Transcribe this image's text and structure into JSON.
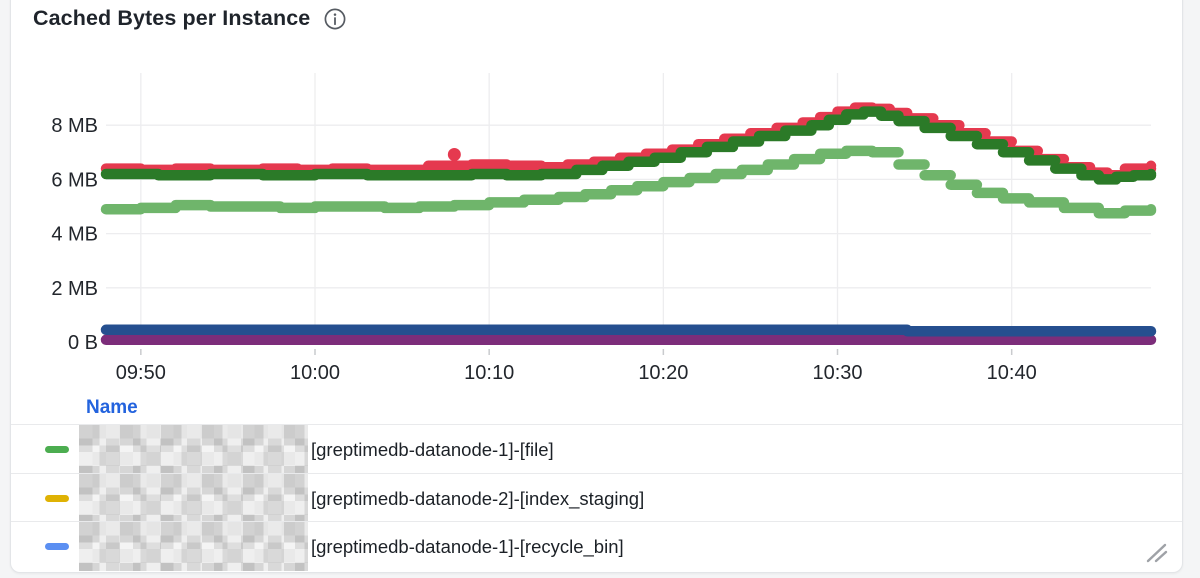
{
  "panel": {
    "title": "Cached Bytes per Instance",
    "background": "#ffffff",
    "border_color": "#e3e5e8",
    "page_background": "#f4f5f6"
  },
  "chart_data": {
    "type": "scatter",
    "title": "Cached Bytes per Instance",
    "ylabel": "",
    "xlabel": "",
    "unit": "bytes",
    "grid": true,
    "legend_position": "bottom-table",
    "x_axis": {
      "start_label": "09:48",
      "end_label": "10:48",
      "range_min": [
        0,
        60
      ]
    },
    "x_ticks": [
      {
        "label": "09:50",
        "min": 2
      },
      {
        "label": "10:00",
        "min": 12
      },
      {
        "label": "10:10",
        "min": 22
      },
      {
        "label": "10:20",
        "min": 32
      },
      {
        "label": "10:30",
        "min": 42
      },
      {
        "label": "10:40",
        "min": 52
      }
    ],
    "y_ticks": [
      {
        "label": "0 B",
        "mb": 0
      },
      {
        "label": "2 MB",
        "mb": 2
      },
      {
        "label": "4 MB",
        "mb": 4
      },
      {
        "label": "6 MB",
        "mb": 6
      },
      {
        "label": "8 MB",
        "mb": 8
      }
    ],
    "y_range_mb": [
      0,
      9.9
    ],
    "series": [
      {
        "id": "light-green",
        "color": "#6fb56b",
        "points": [
          [
            0,
            4.9
          ],
          [
            2,
            4.95
          ],
          [
            4,
            5.05
          ],
          [
            6,
            5.0
          ],
          [
            8,
            5.0
          ],
          [
            10,
            4.95
          ],
          [
            12,
            5.0
          ],
          [
            14,
            5.0
          ],
          [
            16,
            4.95
          ],
          [
            18,
            5.0
          ],
          [
            20,
            5.05
          ],
          [
            22,
            5.15
          ],
          [
            24,
            5.25
          ],
          [
            26,
            5.35
          ],
          [
            27.5,
            5.45
          ],
          [
            29,
            5.6
          ],
          [
            30.5,
            5.75
          ],
          [
            32,
            5.9
          ],
          [
            33.5,
            6.05
          ],
          [
            35,
            6.2
          ],
          [
            36.5,
            6.35
          ],
          [
            38,
            6.55
          ],
          [
            39.5,
            6.75
          ],
          [
            41,
            6.95
          ],
          [
            42.5,
            7.05
          ],
          [
            44,
            7.0
          ],
          [
            45.5,
            6.55
          ],
          [
            47,
            6.15
          ],
          [
            48.5,
            5.8
          ],
          [
            50,
            5.5
          ],
          [
            51.5,
            5.3
          ],
          [
            53,
            5.15
          ],
          [
            55,
            4.95
          ],
          [
            57,
            4.75
          ],
          [
            58.5,
            4.85
          ],
          [
            60,
            4.9
          ]
        ]
      },
      {
        "id": "red",
        "color": "#e5394f",
        "points": [
          [
            0,
            6.4
          ],
          [
            2,
            6.35
          ],
          [
            4,
            6.4
          ],
          [
            6,
            6.35
          ],
          [
            9,
            6.4
          ],
          [
            11,
            6.35
          ],
          [
            13,
            6.4
          ],
          [
            15,
            6.35
          ],
          [
            17,
            6.35
          ],
          [
            18.5,
            6.5
          ],
          [
            21,
            6.55
          ],
          [
            23,
            6.5
          ],
          [
            25,
            6.45
          ],
          [
            26.5,
            6.55
          ],
          [
            28,
            6.65
          ],
          [
            29.5,
            6.8
          ],
          [
            31,
            6.95
          ],
          [
            32.5,
            7.1
          ],
          [
            34,
            7.3
          ],
          [
            35.5,
            7.5
          ],
          [
            37,
            7.7
          ],
          [
            38.5,
            7.9
          ],
          [
            40,
            8.1
          ],
          [
            41,
            8.3
          ],
          [
            42,
            8.5
          ],
          [
            43,
            8.65
          ],
          [
            44,
            8.6
          ],
          [
            45,
            8.45
          ],
          [
            46,
            8.25
          ],
          [
            47.5,
            8.0
          ],
          [
            49,
            7.7
          ],
          [
            50.5,
            7.4
          ],
          [
            52,
            7.05
          ],
          [
            53.5,
            6.75
          ],
          [
            55,
            6.45
          ],
          [
            56.5,
            6.25
          ],
          [
            57.5,
            6.15
          ],
          [
            58.5,
            6.4
          ],
          [
            60,
            6.5
          ]
        ]
      },
      {
        "id": "dark-green",
        "color": "#2b7a28",
        "points": [
          [
            0,
            6.2
          ],
          [
            3,
            6.15
          ],
          [
            6,
            6.2
          ],
          [
            9,
            6.15
          ],
          [
            12,
            6.2
          ],
          [
            15,
            6.15
          ],
          [
            18,
            6.15
          ],
          [
            21,
            6.2
          ],
          [
            23,
            6.15
          ],
          [
            25,
            6.2
          ],
          [
            27,
            6.35
          ],
          [
            28.5,
            6.5
          ],
          [
            30,
            6.65
          ],
          [
            31.5,
            6.8
          ],
          [
            33,
            7.0
          ],
          [
            34.5,
            7.2
          ],
          [
            36,
            7.4
          ],
          [
            37.5,
            7.6
          ],
          [
            39,
            7.8
          ],
          [
            40.5,
            8.0
          ],
          [
            41.5,
            8.2
          ],
          [
            42.5,
            8.4
          ],
          [
            43.5,
            8.5
          ],
          [
            44.5,
            8.35
          ],
          [
            45.5,
            8.15
          ],
          [
            47,
            7.9
          ],
          [
            48.5,
            7.6
          ],
          [
            50,
            7.3
          ],
          [
            51.5,
            7.0
          ],
          [
            53,
            6.7
          ],
          [
            54.5,
            6.4
          ],
          [
            56,
            6.15
          ],
          [
            57,
            6.0
          ],
          [
            58,
            6.1
          ],
          [
            59,
            6.15
          ],
          [
            60,
            6.2
          ]
        ]
      },
      {
        "id": "purple",
        "color": "#7c2d7a",
        "points": [
          [
            0,
            0.08
          ],
          [
            60,
            0.08
          ]
        ]
      },
      {
        "id": "navy",
        "color": "#254f8f",
        "points": [
          [
            0,
            0.45
          ],
          [
            45,
            0.45
          ],
          [
            46,
            0.4
          ],
          [
            60,
            0.4
          ]
        ]
      }
    ],
    "outliers": [
      {
        "series": "red",
        "color": "#e5394f",
        "min": 20,
        "mb": 6.92
      }
    ]
  },
  "legend": {
    "header": "Name",
    "header_color": "#2363de",
    "rows": [
      {
        "chip_color": "#4cad50",
        "redacted_prefix": true,
        "label": "[greptimedb-datanode-1]-[file]"
      },
      {
        "chip_color": "#dfb204",
        "redacted_prefix": true,
        "label": "[greptimedb-datanode-2]-[index_staging]"
      },
      {
        "chip_color": "#5b8ff2",
        "redacted_prefix": true,
        "label": "[greptimedb-datanode-1]-[recycle_bin]"
      }
    ]
  },
  "misc": {
    "resize_handle": "panel-resize-grip"
  }
}
